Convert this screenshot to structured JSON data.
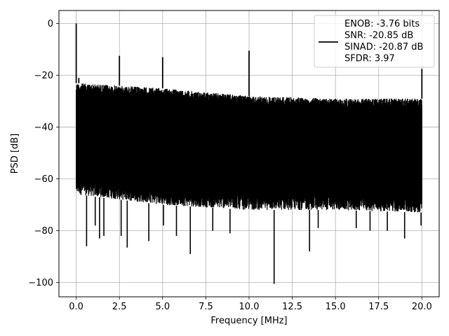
{
  "chart_data": {
    "type": "line",
    "title": "",
    "xlabel": "Frequency [MHz]",
    "ylabel": "PSD [dB]",
    "xlim": [
      -1.0,
      21.0
    ],
    "ylim": [
      -105.5,
      5.0
    ],
    "x_ticks": [
      0.0,
      2.5,
      5.0,
      7.5,
      10.0,
      12.5,
      15.0,
      17.5,
      20.0
    ],
    "x_tick_labels": [
      "0.0",
      "2.5",
      "5.0",
      "7.5",
      "10.0",
      "12.5",
      "15.0",
      "17.5",
      "20.0"
    ],
    "y_ticks": [
      0,
      -20,
      -40,
      -60,
      -80,
      -100
    ],
    "y_tick_labels": [
      "0",
      "−20",
      "−40",
      "−60",
      "−80",
      "−100"
    ],
    "grid": true,
    "legend_position": "top-right",
    "legend_entries": [
      "ENOB: -3.76 bits",
      "SNR: -20.85 dB",
      "SINAD: -20.87 dB",
      "SFDR: 3.97"
    ],
    "series": [
      {
        "color": "#000000",
        "noise_floor_upper": [
          [
            0.0,
            -23
          ],
          [
            5.0,
            -25
          ],
          [
            10.0,
            -28
          ],
          [
            15.0,
            -29
          ],
          [
            20.0,
            -29
          ]
        ],
        "noise_floor_lower": [
          [
            0.0,
            -66
          ],
          [
            5.0,
            -70
          ],
          [
            10.0,
            -72
          ],
          [
            15.0,
            -72
          ],
          [
            20.0,
            -73
          ]
        ],
        "spikes": [
          {
            "x": 0.0,
            "y": 0
          },
          {
            "x": 0.15,
            "y": -21
          },
          {
            "x": 2.5,
            "y": -12.5
          },
          {
            "x": 5.0,
            "y": -13
          },
          {
            "x": 10.0,
            "y": -10.5
          },
          {
            "x": 20.0,
            "y": -17.5
          }
        ],
        "dips": [
          {
            "x": 0.6,
            "y": -86
          },
          {
            "x": 1.1,
            "y": -78
          },
          {
            "x": 1.35,
            "y": -83
          },
          {
            "x": 1.6,
            "y": -82
          },
          {
            "x": 2.6,
            "y": -82
          },
          {
            "x": 2.95,
            "y": -86.5
          },
          {
            "x": 4.2,
            "y": -84
          },
          {
            "x": 5.05,
            "y": -78
          },
          {
            "x": 5.8,
            "y": -82
          },
          {
            "x": 6.6,
            "y": -89
          },
          {
            "x": 7.9,
            "y": -80
          },
          {
            "x": 8.9,
            "y": -81
          },
          {
            "x": 11.45,
            "y": -100.5
          },
          {
            "x": 13.5,
            "y": -88
          },
          {
            "x": 14.0,
            "y": -79
          },
          {
            "x": 16.2,
            "y": -79
          },
          {
            "x": 17.0,
            "y": -80
          },
          {
            "x": 18.0,
            "y": -80
          },
          {
            "x": 19.0,
            "y": -83
          },
          {
            "x": 19.95,
            "y": -78
          }
        ]
      }
    ]
  }
}
